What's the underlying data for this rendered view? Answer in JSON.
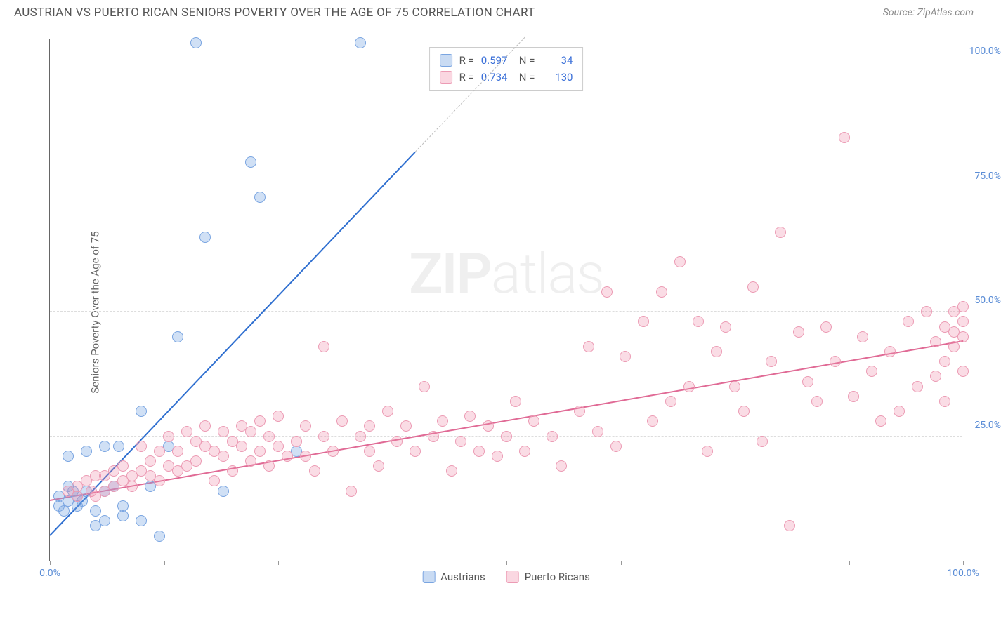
{
  "header": {
    "title": "AUSTRIAN VS PUERTO RICAN SENIORS POVERTY OVER THE AGE OF 75 CORRELATION CHART",
    "source": "Source: ZipAtlas.com"
  },
  "chart": {
    "type": "scatter",
    "y_axis_label": "Seniors Poverty Over the Age of 75",
    "watermark": "ZIPatlas",
    "xlim": [
      0,
      100
    ],
    "ylim": [
      0,
      105
    ],
    "x_ticks": [
      0,
      12.5,
      25,
      37.5,
      50,
      62.5,
      75,
      87.5,
      100
    ],
    "x_tick_labels": {
      "0": "0.0%",
      "100": "100.0%"
    },
    "y_ticks": [
      25,
      50,
      75,
      100
    ],
    "y_tick_labels": [
      "25.0%",
      "50.0%",
      "75.0%",
      "100.0%"
    ],
    "background_color": "#ffffff",
    "grid_color": "#dddddd",
    "point_radius": 8,
    "series": [
      {
        "name": "Austrians",
        "color_fill": "rgba(120,165,225,0.35)",
        "color_stroke": "#7aa5e1",
        "trend_color": "#2f6fd0",
        "R": "0.597",
        "N": "34",
        "trend": {
          "x1": 0,
          "y1": 5,
          "x2": 40,
          "y2": 82,
          "dash_x2": 52,
          "dash_y2": 105
        },
        "points": [
          [
            1,
            11
          ],
          [
            1,
            13
          ],
          [
            1.5,
            10
          ],
          [
            2,
            15
          ],
          [
            2,
            12
          ],
          [
            2.5,
            14
          ],
          [
            3,
            13
          ],
          [
            3,
            11
          ],
          [
            3.5,
            12
          ],
          [
            4,
            14
          ],
          [
            2,
            21
          ],
          [
            4,
            22
          ],
          [
            5,
            10
          ],
          [
            5,
            7
          ],
          [
            6,
            14
          ],
          [
            6,
            8
          ],
          [
            6,
            23
          ],
          [
            7,
            15
          ],
          [
            7.5,
            23
          ],
          [
            8,
            11
          ],
          [
            8,
            9
          ],
          [
            10,
            8
          ],
          [
            10,
            30
          ],
          [
            11,
            15
          ],
          [
            12,
            5
          ],
          [
            13,
            23
          ],
          [
            14,
            45
          ],
          [
            16,
            104
          ],
          [
            17,
            65
          ],
          [
            19,
            14
          ],
          [
            22,
            80
          ],
          [
            23,
            73
          ],
          [
            27,
            22
          ],
          [
            34,
            104
          ]
        ]
      },
      {
        "name": "Puerto Ricans",
        "color_fill": "rgba(240,140,170,0.3)",
        "color_stroke": "#ec9bb4",
        "trend_color": "#e06a95",
        "R": "0.734",
        "N": "130",
        "trend": {
          "x1": 0,
          "y1": 12,
          "x2": 100,
          "y2": 44
        },
        "points": [
          [
            2,
            14
          ],
          [
            3,
            13
          ],
          [
            3,
            15
          ],
          [
            4,
            16
          ],
          [
            4.5,
            14
          ],
          [
            5,
            13
          ],
          [
            5,
            17
          ],
          [
            6,
            14
          ],
          [
            6,
            17
          ],
          [
            7,
            15
          ],
          [
            7,
            18
          ],
          [
            8,
            16
          ],
          [
            8,
            19
          ],
          [
            9,
            17
          ],
          [
            9,
            15
          ],
          [
            10,
            18
          ],
          [
            10,
            23
          ],
          [
            11,
            17
          ],
          [
            11,
            20
          ],
          [
            12,
            16
          ],
          [
            12,
            22
          ],
          [
            13,
            19
          ],
          [
            13,
            25
          ],
          [
            14,
            18
          ],
          [
            14,
            22
          ],
          [
            15,
            26
          ],
          [
            15,
            19
          ],
          [
            16,
            24
          ],
          [
            16,
            20
          ],
          [
            17,
            23
          ],
          [
            17,
            27
          ],
          [
            18,
            22
          ],
          [
            18,
            16
          ],
          [
            19,
            26
          ],
          [
            19,
            21
          ],
          [
            20,
            24
          ],
          [
            20,
            18
          ],
          [
            21,
            27
          ],
          [
            21,
            23
          ],
          [
            22,
            20
          ],
          [
            22,
            26
          ],
          [
            23,
            28
          ],
          [
            23,
            22
          ],
          [
            24,
            19
          ],
          [
            24,
            25
          ],
          [
            25,
            23
          ],
          [
            25,
            29
          ],
          [
            26,
            21
          ],
          [
            27,
            24
          ],
          [
            28,
            27
          ],
          [
            28,
            21
          ],
          [
            29,
            18
          ],
          [
            30,
            25
          ],
          [
            30,
            43
          ],
          [
            31,
            22
          ],
          [
            32,
            28
          ],
          [
            33,
            14
          ],
          [
            34,
            25
          ],
          [
            35,
            27
          ],
          [
            35,
            22
          ],
          [
            36,
            19
          ],
          [
            37,
            30
          ],
          [
            38,
            24
          ],
          [
            39,
            27
          ],
          [
            40,
            22
          ],
          [
            41,
            35
          ],
          [
            42,
            25
          ],
          [
            43,
            28
          ],
          [
            44,
            18
          ],
          [
            45,
            24
          ],
          [
            46,
            29
          ],
          [
            47,
            22
          ],
          [
            48,
            27
          ],
          [
            49,
            21
          ],
          [
            50,
            25
          ],
          [
            51,
            32
          ],
          [
            52,
            22
          ],
          [
            53,
            28
          ],
          [
            55,
            25
          ],
          [
            56,
            19
          ],
          [
            58,
            30
          ],
          [
            59,
            43
          ],
          [
            60,
            26
          ],
          [
            61,
            54
          ],
          [
            62,
            23
          ],
          [
            63,
            41
          ],
          [
            65,
            48
          ],
          [
            66,
            28
          ],
          [
            67,
            54
          ],
          [
            68,
            32
          ],
          [
            69,
            60
          ],
          [
            70,
            35
          ],
          [
            71,
            48
          ],
          [
            72,
            22
          ],
          [
            73,
            42
          ],
          [
            74,
            47
          ],
          [
            75,
            35
          ],
          [
            76,
            30
          ],
          [
            77,
            55
          ],
          [
            78,
            24
          ],
          [
            79,
            40
          ],
          [
            80,
            66
          ],
          [
            81,
            7
          ],
          [
            82,
            46
          ],
          [
            83,
            36
          ],
          [
            84,
            32
          ],
          [
            85,
            47
          ],
          [
            86,
            40
          ],
          [
            87,
            85
          ],
          [
            88,
            33
          ],
          [
            89,
            45
          ],
          [
            90,
            38
          ],
          [
            91,
            28
          ],
          [
            92,
            42
          ],
          [
            93,
            30
          ],
          [
            94,
            48
          ],
          [
            95,
            35
          ],
          [
            96,
            50
          ],
          [
            97,
            44
          ],
          [
            97,
            37
          ],
          [
            98,
            47
          ],
          [
            98,
            40
          ],
          [
            98,
            32
          ],
          [
            99,
            46
          ],
          [
            99,
            50
          ],
          [
            99,
            43
          ],
          [
            100,
            48
          ],
          [
            100,
            45
          ],
          [
            100,
            38
          ],
          [
            100,
            51
          ]
        ]
      }
    ],
    "stats_box": {
      "rows": [
        {
          "swatch": "rgba(120,165,225,0.4)",
          "swatch_border": "#7aa5e1",
          "r_label": "R =",
          "r_val": "0.597",
          "n_label": "N =",
          "n_val": "34"
        },
        {
          "swatch": "rgba(240,140,170,0.35)",
          "swatch_border": "#ec9bb4",
          "r_label": "R =",
          "r_val": "0.734",
          "n_label": "N =",
          "n_val": "130"
        }
      ]
    },
    "legend": [
      {
        "swatch": "rgba(120,165,225,0.4)",
        "swatch_border": "#7aa5e1",
        "label": "Austrians"
      },
      {
        "swatch": "rgba(240,140,170,0.35)",
        "swatch_border": "#ec9bb4",
        "label": "Puerto Ricans"
      }
    ]
  }
}
